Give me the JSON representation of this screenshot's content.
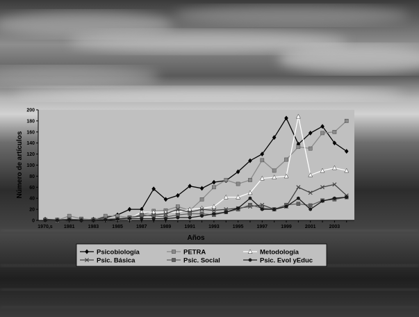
{
  "colors": {
    "plot_background": "#c0c0c0",
    "Psicobiología": "#000000",
    "PETRA": "#8a8a8a",
    "Metodología": "#ffffff",
    "Psic. Básica": "#404040",
    "Psic. Social": "#606060",
    "Psic. Evol yEduc": "#1a1a1a"
  },
  "chart_data": {
    "type": "line",
    "title": "",
    "xlabel": "Años",
    "ylabel": "Número de artículos",
    "ylim": [
      0,
      200
    ],
    "yticks": [
      0,
      20,
      40,
      60,
      80,
      100,
      120,
      140,
      160,
      180,
      200
    ],
    "grid": false,
    "legend_position": "bottom",
    "x": [
      "1970,s",
      "1980",
      "1981",
      "1982",
      "1983",
      "1984",
      "1985",
      "1986",
      "1987",
      "1988",
      "1989",
      "1990",
      "1991",
      "1992",
      "1993",
      "1994",
      "1995",
      "1996",
      "1997",
      "1998",
      "1999",
      "2000",
      "2001",
      "2002",
      "2003",
      "2004"
    ],
    "x_tick_labels": [
      "1970,s",
      "1981",
      "1983",
      "1985",
      "1987",
      "1989",
      "1991",
      "1993",
      "1995",
      "1997",
      "1999",
      "2001",
      "2003"
    ],
    "series": [
      {
        "name": "Psicobiología",
        "marker": "diamond",
        "values": [
          2,
          1,
          2,
          1,
          2,
          5,
          10,
          20,
          20,
          57,
          38,
          45,
          62,
          58,
          69,
          72,
          88,
          108,
          120,
          150,
          185,
          138,
          158,
          170,
          140,
          125
        ]
      },
      {
        "name": "PETRA",
        "marker": "square",
        "values": [
          0,
          0,
          8,
          3,
          1,
          8,
          8,
          5,
          10,
          17,
          18,
          25,
          18,
          38,
          60,
          73,
          66,
          73,
          109,
          90,
          110,
          133,
          130,
          158,
          160,
          180
        ]
      },
      {
        "name": "Metodología",
        "marker": "triangle",
        "values": [
          1,
          0,
          1,
          1,
          1,
          1,
          2,
          3,
          15,
          15,
          15,
          15,
          20,
          22,
          25,
          42,
          42,
          50,
          76,
          78,
          80,
          188,
          82,
          90,
          95,
          90
        ]
      },
      {
        "name": "Psic. Básica",
        "marker": "x",
        "values": [
          0,
          1,
          1,
          1,
          1,
          2,
          3,
          5,
          8,
          10,
          12,
          20,
          15,
          20,
          18,
          20,
          22,
          25,
          28,
          20,
          25,
          60,
          50,
          60,
          65,
          45
        ]
      },
      {
        "name": "Psic. Social",
        "marker": "square",
        "values": [
          1,
          1,
          2,
          1,
          1,
          2,
          3,
          5,
          10,
          8,
          6,
          10,
          12,
          12,
          10,
          15,
          20,
          28,
          22,
          20,
          28,
          30,
          27,
          36,
          38,
          42
        ]
      },
      {
        "name": "Psic. Evol yEduc",
        "marker": "circle",
        "values": [
          0,
          0,
          1,
          0,
          0,
          1,
          2,
          3,
          3,
          3,
          3,
          5,
          5,
          8,
          12,
          15,
          22,
          40,
          20,
          20,
          25,
          40,
          20,
          35,
          40,
          42
        ]
      }
    ]
  }
}
